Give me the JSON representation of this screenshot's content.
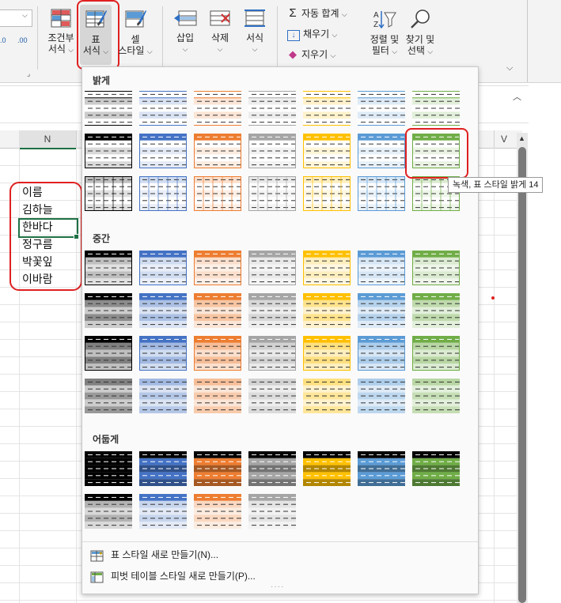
{
  "ribbon": {
    "conditional_label_1": "조건부",
    "conditional_label_2": "서식",
    "table_label_1": "표",
    "table_label_2": "서식",
    "cell_label_1": "셀",
    "cell_label_2": "스타일",
    "insert_label": "삽입",
    "delete_label": "삭제",
    "format_label": "서식",
    "autosum_label": "자동 합계",
    "fill_label": "채우기",
    "clear_label": "지우기",
    "sort_label_1": "정렬 및",
    "sort_label_2": "필터",
    "find_label_1": "찾기 및",
    "find_label_2": "선택",
    "decimal_inc": ".00",
    "decimal_dec": ".0"
  },
  "sheet": {
    "column_n": "N",
    "column_v": "V",
    "cells": [
      "이름",
      "김하늘",
      "한바다",
      "정구름",
      "박꽃잎",
      "이바람"
    ]
  },
  "gallery": {
    "section_light": "밝게",
    "section_medium": "중간",
    "section_dark": "어둡게",
    "new_table_style": "표 스타일 새로 만들기(N)...",
    "new_pivot_style": "피벗 테이블 스타일 새로 만들기(P)...",
    "tooltip": "녹색, 표 스타일 밝게 14",
    "palette": [
      "#000000",
      "#4472c4",
      "#ed7d31",
      "#a5a5a5",
      "#ffc000",
      "#5b9bd5",
      "#70ad47"
    ]
  }
}
